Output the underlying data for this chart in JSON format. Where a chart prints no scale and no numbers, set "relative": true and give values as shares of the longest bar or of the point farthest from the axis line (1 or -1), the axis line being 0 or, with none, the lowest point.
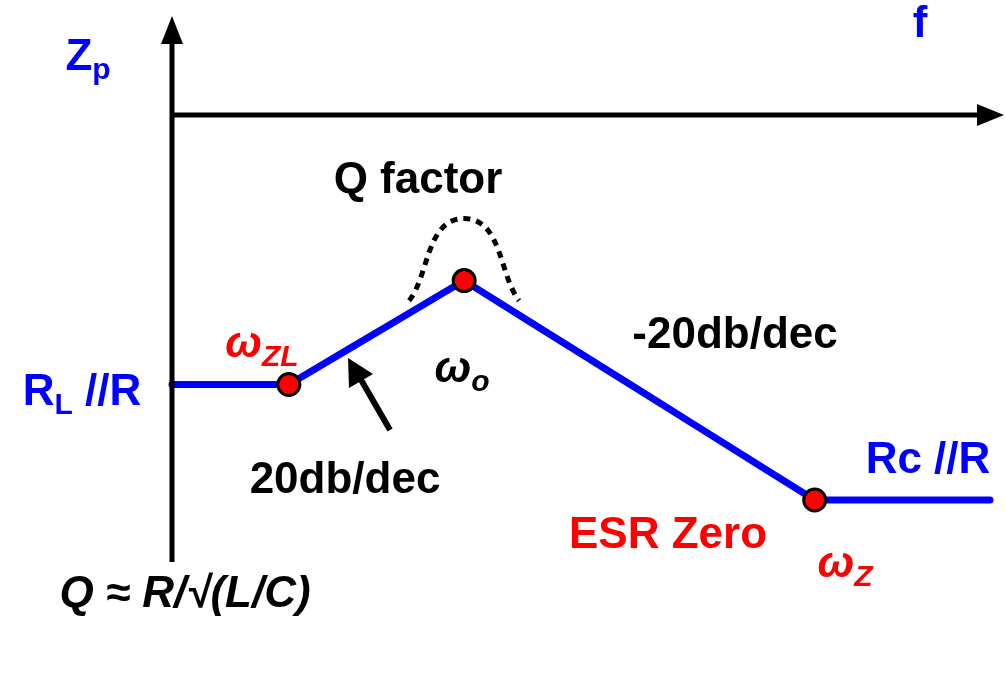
{
  "chart_data": {
    "type": "line",
    "relative": true,
    "ylabel": "Z$_{p}$",
    "categories": [
      null,
      null,
      null,
      null,
      null,
      null,
      null,
      null,
      null,
      null,
      null,
      null,
      null,
      null,
      null
    ],
    "series": [
      {
        "color": "#0000ff",
        "values": [
          -0.7,
          -0.7,
          -0.7,
          -0.61,
          -0.52,
          -0.43,
          -0.525,
          -0.62,
          -0.715,
          -0.81,
          -0.905,
          -1,
          -1,
          -1,
          -1
        ]
      }
    ],
    "annotations": [
      "ω$_{ZL}$",
      "ω$_{o}$",
      "ω$_{Z}$",
      "R$_{L}$ //R",
      "Rc //R",
      "Q factor",
      "20db/dec",
      "-20db/dec",
      "ESR Zero",
      "Q ≈ R/√(L/C)",
      "f"
    ]
  }
}
